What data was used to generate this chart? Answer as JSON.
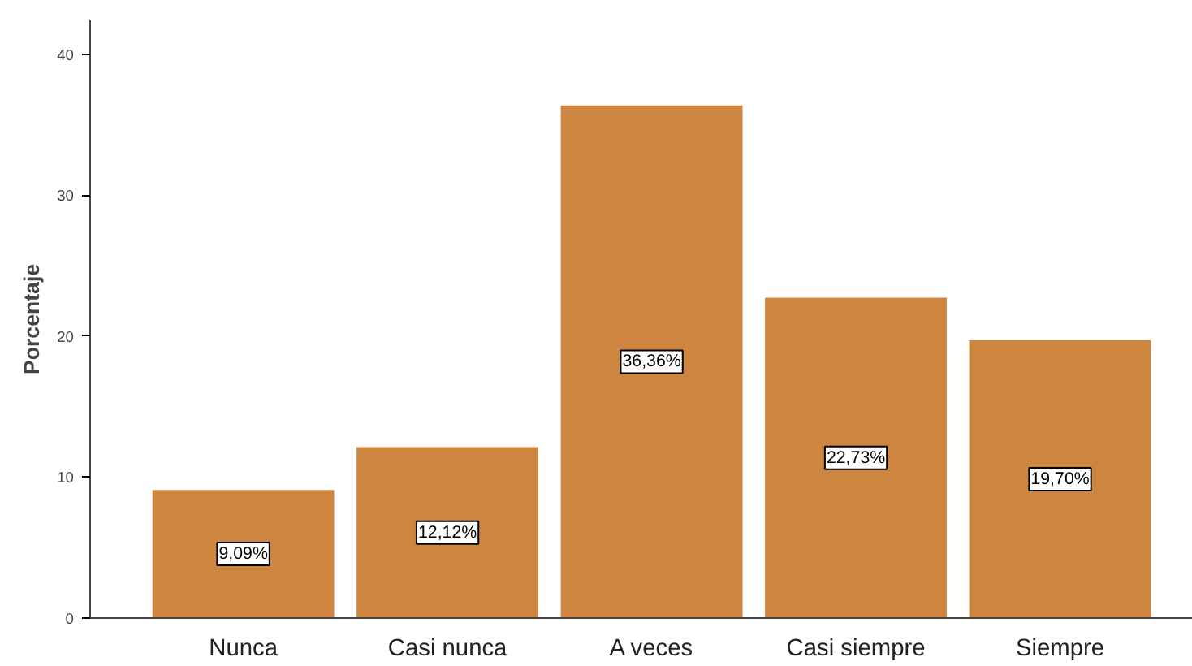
{
  "chart_data": {
    "type": "bar",
    "ylabel": "Porcentaje",
    "categories": [
      "Nunca",
      "Casi nunca",
      "A veces",
      "Casi siempre",
      "Siempre"
    ],
    "values": [
      9.09,
      12.12,
      36.36,
      22.73,
      19.7
    ],
    "value_labels": [
      "9,09%",
      "12,12%",
      "36,36%",
      "22,73%",
      "19,70%"
    ],
    "color": "#cd853f",
    "ylim": [
      0,
      42.4
    ],
    "yticks": [
      0,
      10,
      20,
      30,
      40
    ],
    "grid": false
  }
}
